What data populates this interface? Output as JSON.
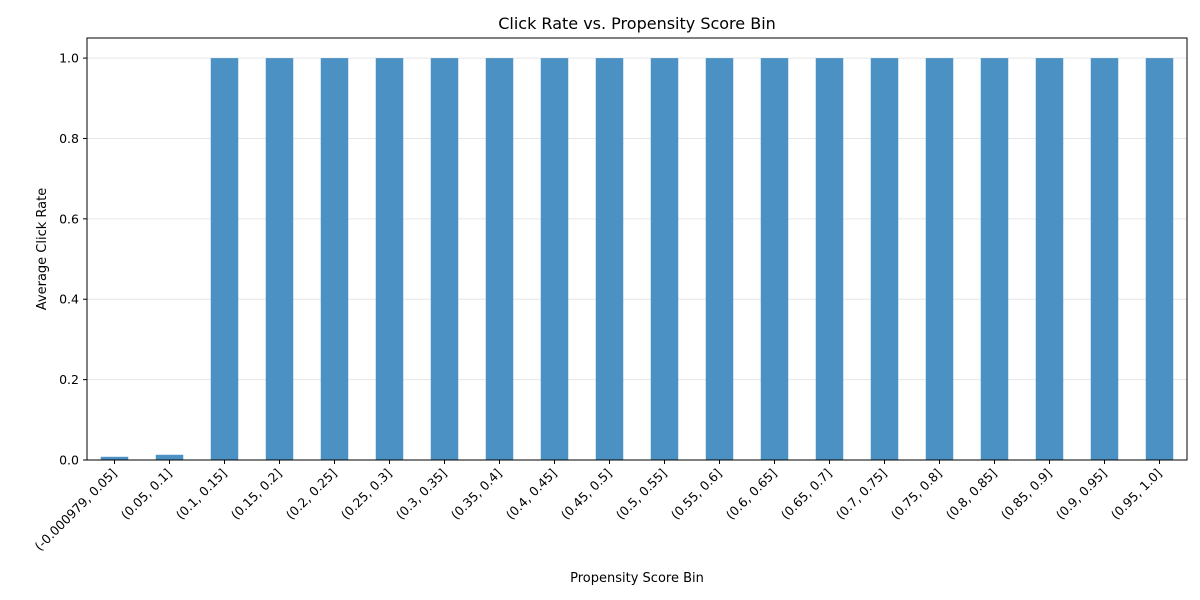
{
  "chart_data": {
    "type": "bar",
    "title": "Click Rate vs. Propensity Score Bin",
    "xlabel": "Propensity Score Bin",
    "ylabel": "Average Click Rate",
    "categories": [
      "(-0.000979, 0.05]",
      "(0.05, 0.1]",
      "(0.1, 0.15]",
      "(0.15, 0.2]",
      "(0.2, 0.25]",
      "(0.25, 0.3]",
      "(0.3, 0.35]",
      "(0.35, 0.4]",
      "(0.4, 0.45]",
      "(0.45, 0.5]",
      "(0.5, 0.55]",
      "(0.55, 0.6]",
      "(0.6, 0.65]",
      "(0.65, 0.7]",
      "(0.7, 0.75]",
      "(0.75, 0.8]",
      "(0.8, 0.85]",
      "(0.85, 0.9]",
      "(0.9, 0.95]",
      "(0.95, 1.0]"
    ],
    "values": [
      0.008,
      0.013,
      1.0,
      1.0,
      1.0,
      1.0,
      1.0,
      1.0,
      1.0,
      1.0,
      1.0,
      1.0,
      1.0,
      1.0,
      1.0,
      1.0,
      1.0,
      1.0,
      1.0,
      1.0
    ],
    "ylim": [
      0,
      1.05
    ],
    "yticks": [
      0.0,
      0.2,
      0.4,
      0.6,
      0.8,
      1.0
    ],
    "ytick_labels": [
      "0.0",
      "0.2",
      "0.4",
      "0.6",
      "0.8",
      "1.0"
    ],
    "grid": "horizontal",
    "bar_color": "#4C91C4",
    "grid_color": "#e6e6e6"
  }
}
